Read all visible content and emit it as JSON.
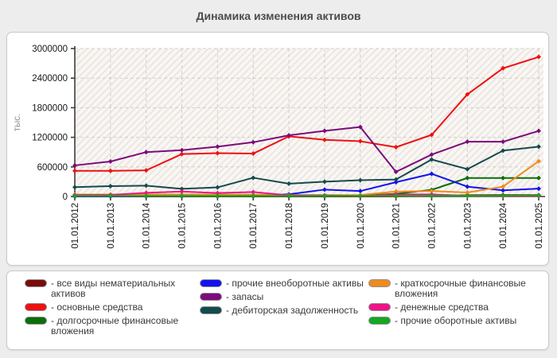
{
  "page": {
    "title": "Динамика изменения активов"
  },
  "legend": {
    "item_prefix": "- "
  },
  "chart_data": {
    "type": "line",
    "title": "Динамика изменения активов",
    "xlabel": "",
    "ylabel": "тыс.",
    "ylim": [
      0,
      3000000
    ],
    "yticks": [
      0,
      600000,
      1200000,
      1800000,
      2400000,
      3000000
    ],
    "grid": true,
    "legend_position": "bottom",
    "categories": [
      "01.01.2012",
      "01.01.2013",
      "01.01.2014",
      "01.01.2015",
      "01.01.2016",
      "01.01.2017",
      "01.01.2018",
      "01.01.2019",
      "01.01.2020",
      "01.01.2021",
      "01.01.2022",
      "01.01.2023",
      "01.01.2024",
      "01.01.2025"
    ],
    "series": [
      {
        "name": "все виды нематериальных активов",
        "color": "#7a0c0c",
        "values": [
          2000,
          2000,
          2000,
          2000,
          2000,
          3000,
          3000,
          3000,
          3000,
          5000,
          10000,
          27000,
          28000,
          28000
        ]
      },
      {
        "name": "основные средства",
        "color": "#ee1111",
        "values": [
          520000,
          520000,
          530000,
          860000,
          880000,
          870000,
          1220000,
          1150000,
          1120000,
          1000000,
          1250000,
          2070000,
          2600000,
          2830000
        ]
      },
      {
        "name": "долгосрочные финансовые вложения",
        "color": "#0a6e0a",
        "values": [
          8000,
          8000,
          8000,
          8000,
          8000,
          8000,
          10000,
          10000,
          15000,
          55000,
          135000,
          375000,
          375000,
          375000
        ]
      },
      {
        "name": "прочие внеоборотные активы",
        "color": "#1212ee",
        "values": [
          5000,
          5000,
          10000,
          10000,
          40000,
          20000,
          45000,
          140000,
          110000,
          290000,
          460000,
          200000,
          125000,
          160000
        ]
      },
      {
        "name": "запасы",
        "color": "#7c0b7c",
        "values": [
          630000,
          710000,
          900000,
          940000,
          1010000,
          1100000,
          1240000,
          1330000,
          1410000,
          500000,
          850000,
          1110000,
          1110000,
          1330000
        ]
      },
      {
        "name": "дебиторская задолженность",
        "color": "#154a4d",
        "values": [
          190000,
          210000,
          220000,
          155000,
          185000,
          380000,
          260000,
          300000,
          330000,
          345000,
          750000,
          555000,
          930000,
          1010000
        ]
      },
      {
        "name": "краткосрочные финансовые вложения",
        "color": "#ef8b1d",
        "values": [
          40000,
          40000,
          42000,
          42000,
          40000,
          38000,
          30000,
          28000,
          30000,
          100000,
          110000,
          80000,
          200000,
          715000
        ]
      },
      {
        "name": "денежные средства",
        "color": "#ee1387",
        "values": [
          28000,
          32000,
          75000,
          100000,
          70000,
          90000,
          25000,
          22000,
          10000,
          42000,
          42000,
          15000,
          10000,
          10000
        ]
      },
      {
        "name": "прочие оборотные активы",
        "color": "#12a81f",
        "values": [
          12000,
          12000,
          12000,
          12000,
          12000,
          12000,
          12000,
          12000,
          12000,
          12000,
          15000,
          15000,
          15000,
          20000
        ]
      }
    ],
    "legend_columns": [
      [
        0,
        1,
        2
      ],
      [
        3,
        4,
        5
      ],
      [
        6,
        7,
        8
      ]
    ]
  }
}
